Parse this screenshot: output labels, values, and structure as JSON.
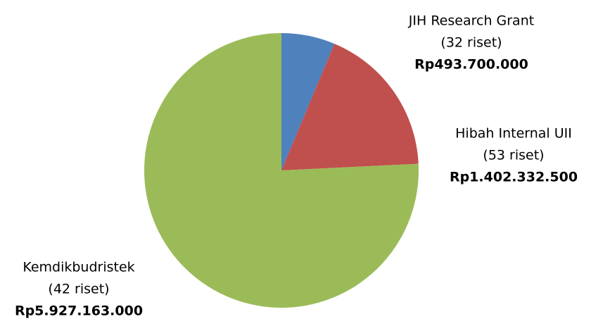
{
  "chart_data": {
    "type": "pie",
    "categories": [
      "JIH Research Grant",
      "Hibah Internal UII",
      "Kemdikbudristek"
    ],
    "sublabels": [
      "(32 riset)",
      "(53 riset)",
      "(42 riset)"
    ],
    "values": [
      493700000,
      1402332500,
      5927163000
    ],
    "value_labels": [
      "Rp493.700.000",
      "Rp1.402.332.500",
      "Rp5.927.163.000"
    ],
    "colors": [
      "#4f81bd",
      "#c0504d",
      "#9bbb59"
    ]
  }
}
